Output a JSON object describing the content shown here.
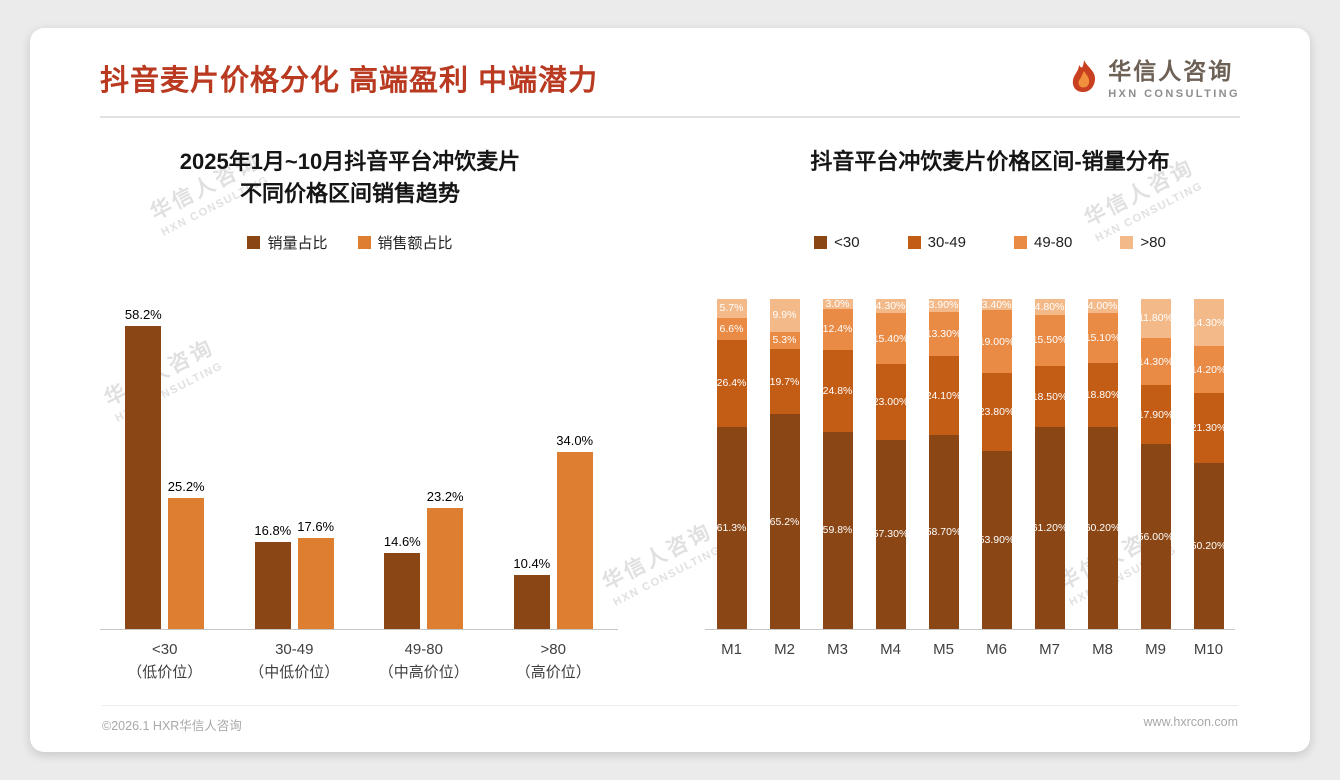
{
  "page": {
    "title": "抖音麦片价格分化 高端盈利 中端潜力",
    "logo": {
      "name": "华信人咨询",
      "subtitle": "HXN CONSULTING"
    },
    "watermark": {
      "text": "华信人咨询",
      "subtext": "HXN CONSULTING"
    },
    "footer": {
      "left": "©2026.1 HXR华信人咨询",
      "right": "www.hxrcon.com"
    }
  },
  "colors": {
    "title_red": "#b93a20",
    "series_lt30": "#8a4715",
    "series_30_49": "#c35d16",
    "series_49_80": "#e98a45",
    "series_gt80": "#f3b988",
    "left_sales_orange": "#dd7e31"
  },
  "chart_data": [
    {
      "type": "bar",
      "stacked": false,
      "title": "2025年1月~10月抖音平台冲饮麦片 不同价格区间销售趋势",
      "title_lines": [
        "2025年1月~10月抖音平台冲饮麦片",
        "不同价格区间销售趋势"
      ],
      "xlabel": "",
      "ylabel": "",
      "ylim": [
        0,
        60
      ],
      "grid": false,
      "legend_position": "top",
      "categories": [
        "<30",
        "30-49",
        "49-80",
        ">80"
      ],
      "category_sublabels": [
        "（低价位）",
        "（中低价位）",
        "（中高价位）",
        "（高价位）"
      ],
      "series": [
        {
          "name": "销量占比",
          "color": "#8a4715",
          "values": [
            58.2,
            16.8,
            14.6,
            10.4
          ],
          "labels": [
            "58.2%",
            "16.8%",
            "14.6%",
            "10.4%"
          ]
        },
        {
          "name": "销售额占比",
          "color": "#dd7e31",
          "values": [
            25.2,
            17.6,
            23.2,
            34.0
          ],
          "labels": [
            "25.2%",
            "17.6%",
            "23.2%",
            "34.0%"
          ]
        }
      ]
    },
    {
      "type": "bar",
      "stacked": true,
      "percent": true,
      "title": "抖音平台冲饮麦片价格区间-销量分布",
      "xlabel": "",
      "ylabel": "",
      "ylim": [
        0,
        100
      ],
      "grid": false,
      "legend_position": "top",
      "categories": [
        "M1",
        "M2",
        "M3",
        "M4",
        "M5",
        "M6",
        "M7",
        "M8",
        "M9",
        "M10"
      ],
      "series": [
        {
          "name": "<30",
          "color": "#8a4715",
          "values": [
            61.3,
            65.2,
            59.8,
            57.3,
            58.7,
            53.9,
            61.2,
            60.2,
            56.0,
            50.2
          ],
          "labels": [
            "61.3%",
            "65.2%",
            "59.8%",
            "57.30%",
            "58.70%",
            "53.90%",
            "61.20%",
            "60.20%",
            "56.00%",
            "50.20%"
          ]
        },
        {
          "name": "30-49",
          "color": "#c35d16",
          "values": [
            26.4,
            19.7,
            24.8,
            23.0,
            24.1,
            23.8,
            18.5,
            18.8,
            17.9,
            21.3
          ],
          "labels": [
            "26.4%",
            "19.7%",
            "24.8%",
            "23.00%",
            "24.10%",
            "23.80%",
            "18.50%",
            "18.80%",
            "17.90%",
            "21.30%"
          ]
        },
        {
          "name": "49-80",
          "color": "#e98a45",
          "values": [
            6.6,
            5.3,
            12.4,
            15.4,
            13.3,
            19.0,
            15.5,
            15.1,
            14.3,
            14.2
          ],
          "labels": [
            "6.6%",
            "5.3%",
            "12.4%",
            "15.40%",
            "13.30%",
            "19.00%",
            "15.50%",
            "15.10%",
            "14.30%",
            "14.20%"
          ]
        },
        {
          "name": ">80",
          "color": "#f3b988",
          "values": [
            5.7,
            9.9,
            3.0,
            4.3,
            3.9,
            3.4,
            4.8,
            4.0,
            11.8,
            14.3
          ],
          "labels": [
            "5.7%",
            "9.9%",
            "3.0%",
            "4.30%",
            "3.90%",
            "3.40%",
            "4.80%",
            "4.00%",
            "11.80%",
            "14.30%"
          ]
        }
      ]
    }
  ]
}
